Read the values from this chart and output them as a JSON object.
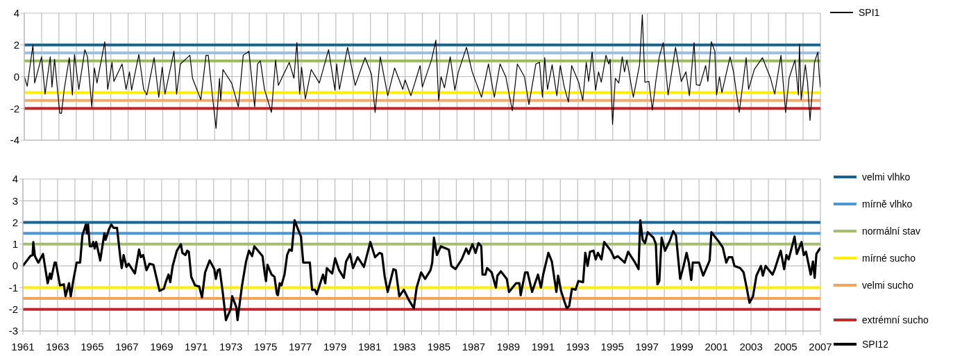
{
  "chart_data": [
    {
      "type": "line",
      "tick_labels": "y",
      "grid": true,
      "legend": "top right",
      "xlim": [
        1961,
        2007
      ],
      "xticks": [
        1961,
        {
          "value": 1962,
          "label": null
        },
        1963,
        {
          "value": 1964,
          "label": null
        },
        1965,
        {
          "value": 1966,
          "label": null
        },
        1967,
        {
          "value": 1968,
          "label": null
        },
        1969,
        {
          "value": 1970,
          "label": null
        },
        1971,
        {
          "value": 1972,
          "label": null
        },
        1973,
        {
          "value": 1974,
          "label": null
        },
        1975,
        {
          "value": 1976,
          "label": null
        },
        1977,
        {
          "value": 1978,
          "label": null
        },
        1979,
        {
          "value": 1980,
          "label": null
        },
        1981,
        {
          "value": 1982,
          "label": null
        },
        1983,
        {
          "value": 1984,
          "label": null
        },
        1985,
        {
          "value": 1986,
          "label": null
        },
        1987,
        {
          "value": 1988,
          "label": null
        },
        1989,
        {
          "value": 1990,
          "label": null
        },
        1991,
        {
          "value": 1992,
          "label": null
        },
        1993,
        {
          "value": 1994,
          "label": null
        },
        1995,
        {
          "value": 1996,
          "label": null
        },
        1997,
        {
          "value": 1998,
          "label": null
        },
        1999,
        {
          "value": 2000,
          "label": null
        },
        2001,
        {
          "value": 2002,
          "label": null
        },
        2003,
        {
          "value": 2004,
          "label": null
        },
        2005,
        {
          "value": 2006,
          "label": null
        },
        2007
      ],
      "ylim": [
        -4,
        4
      ],
      "yticks": [
        -4,
        -2,
        0,
        2,
        4
      ],
      "ref_lines": [
        {
          "axis": "y",
          "value": 2,
          "color": "#17648f"
        },
        {
          "axis": "y",
          "value": 1.5,
          "color": "#9dbddc"
        },
        {
          "axis": "y",
          "value": 1,
          "color": "#9bbb59"
        },
        {
          "axis": "y",
          "value": -1,
          "color": "#ffee00"
        },
        {
          "axis": "y",
          "value": -1.5,
          "color": "#f5a968"
        },
        {
          "axis": "y",
          "value": -2,
          "color": "#c0282d"
        }
      ],
      "series": [
        {
          "name": "SPI1",
          "color": "#000000",
          "x": [
            1961.0,
            1961.17,
            1961.5,
            1961.6,
            1962.0,
            1962.2,
            1962.5,
            1962.6,
            1962.75,
            1963.05,
            1963.15,
            1963.3,
            1963.6,
            1963.78,
            1963.9,
            1964.15,
            1964.5,
            1964.65,
            1964.9,
            1965.05,
            1965.2,
            1965.65,
            1965.82,
            1966.07,
            1966.18,
            1966.65,
            1966.88,
            1967.08,
            1967.2,
            1967.62,
            1967.9,
            1968.08,
            1968.5,
            1968.77,
            1968.97,
            1969.13,
            1969.65,
            1969.8,
            1970.02,
            1970.57,
            1970.72,
            1971.2,
            1971.5,
            1971.63,
            1971.88,
            1972.08,
            1972.28,
            1972.35,
            1972.48,
            1972.98,
            1973.37,
            1973.65,
            1973.98,
            1974.31,
            1974.48,
            1974.64,
            1974.88,
            1975.28,
            1975.52,
            1975.68,
            1976.31,
            1976.58,
            1976.75,
            1976.91,
            1977.02,
            1977.24,
            1977.58,
            1978.05,
            1978.58,
            1978.95,
            1979.05,
            1979.21,
            1979.68,
            1980.12,
            1980.69,
            1981.06,
            1981.27,
            1981.57,
            1982.0,
            1982.4,
            1982.87,
            1983.0,
            1983.34,
            1983.87,
            1984.0,
            1984.54,
            1984.78,
            1984.94,
            1985.08,
            1985.28,
            1985.61,
            1985.88,
            1986.08,
            1986.55,
            1986.88,
            1987.42,
            1987.82,
            1988.16,
            1988.49,
            1988.82,
            1989.2,
            1989.49,
            1989.9,
            1990.16,
            1990.56,
            1990.77,
            1990.94,
            1991.07,
            1991.23,
            1991.5,
            1991.77,
            1991.97,
            1992.2,
            1992.44,
            1992.63,
            1993.03,
            1993.27,
            1993.47,
            1993.61,
            1993.81,
            1994.01,
            1994.18,
            1994.34,
            1994.61,
            1994.77,
            1994.85,
            1994.99,
            1995.15,
            1995.35,
            1995.55,
            1995.68,
            1995.82,
            1996.19,
            1996.55,
            1996.71,
            1996.86,
            1997.09,
            1997.29,
            1997.49,
            1997.69,
            1997.92,
            1998.09,
            1998.2,
            1998.63,
            1998.96,
            1999.23,
            1999.43,
            1999.7,
            1999.83,
            2000.04,
            2000.37,
            2000.5,
            2000.7,
            2000.9,
            2001.0,
            2001.17,
            2001.31,
            2001.78,
            2001.98,
            2002.31,
            2002.71,
            2002.85,
            2003.18,
            2003.65,
            2004.12,
            2004.36,
            2004.72,
            2004.99,
            2005.19,
            2005.53,
            2005.73,
            2005.79,
            2005.89,
            2006.13,
            2006.26,
            2006.4,
            2006.66,
            2006.85,
            2006.93,
            2007.0
          ],
          "values": [
            0.0,
            -0.6,
            2.0,
            -0.4,
            1.25,
            -1.1,
            1.25,
            -0.65,
            1.1,
            -2.3,
            -2.3,
            -0.85,
            1.2,
            -1.15,
            1.4,
            -0.8,
            1.7,
            1.25,
            -1.9,
            0.55,
            -0.4,
            2.2,
            -0.8,
            0.9,
            -0.3,
            0.8,
            -0.8,
            0.3,
            -0.85,
            1.4,
            -0.8,
            -1.15,
            1.2,
            -1.3,
            0.6,
            -1.1,
            1.6,
            -1.1,
            0.8,
            1.35,
            -0.1,
            -1.45,
            1.35,
            1.35,
            -1.3,
            -3.25,
            -0.1,
            -1.5,
            0.45,
            -0.4,
            -1.9,
            1.35,
            1.6,
            -1.9,
            0.8,
            1.0,
            -0.8,
            -2.25,
            1.05,
            -0.55,
            0.9,
            -0.1,
            2.15,
            -1.1,
            0.6,
            -1.4,
            0.45,
            -0.4,
            1.7,
            -0.85,
            0.8,
            -0.8,
            1.85,
            -0.55,
            1.2,
            0.15,
            -2.25,
            1.25,
            -1.2,
            0.55,
            -0.8,
            -0.2,
            -1.2,
            0.7,
            -0.65,
            1.1,
            2.3,
            -1.5,
            0.0,
            -0.7,
            1.25,
            -0.85,
            0.3,
            1.85,
            0.3,
            -1.3,
            0.8,
            -1.3,
            0.8,
            0.0,
            -2.15,
            0.8,
            0.0,
            -1.75,
            0.8,
            0.9,
            -1.3,
            1.2,
            -0.8,
            0.75,
            -1.2,
            0.7,
            -0.65,
            -1.6,
            0.7,
            -0.35,
            -1.5,
            0.9,
            -0.3,
            1.55,
            -0.85,
            0.3,
            -0.35,
            1.35,
            0.8,
            1.1,
            -3.0,
            -0.1,
            -0.4,
            1.25,
            0.3,
            1.05,
            -1.3,
            0.75,
            3.9,
            -0.35,
            -0.3,
            -2.1,
            -0.3,
            1.25,
            2.15,
            0.15,
            -1.15,
            1.85,
            -0.3,
            0.3,
            -1.2,
            2.15,
            -0.5,
            -0.55,
            0.7,
            -0.3,
            2.2,
            1.6,
            -1.15,
            0.0,
            -1.0,
            1.25,
            0.3,
            -2.25,
            1.2,
            -0.8,
            0.45,
            1.2,
            -0.1,
            -1.1,
            1.35,
            -2.25,
            -0.1,
            1.05,
            -1.15,
            2.05,
            -1.45,
            0.75,
            -0.4,
            -2.75,
            0.9,
            1.55,
            0.15,
            -0.65
          ]
        }
      ]
    },
    {
      "type": "line",
      "grid": true,
      "legend": "right",
      "xlim": [
        1961,
        2007
      ],
      "xticks": [
        1961,
        {
          "value": 1962,
          "label": null
        },
        1963,
        {
          "value": 1964,
          "label": null
        },
        1965,
        {
          "value": 1966,
          "label": null
        },
        1967,
        {
          "value": 1968,
          "label": null
        },
        1969,
        {
          "value": 1970,
          "label": null
        },
        1971,
        {
          "value": 1972,
          "label": null
        },
        1973,
        {
          "value": 1974,
          "label": null
        },
        1975,
        {
          "value": 1976,
          "label": null
        },
        1977,
        {
          "value": 1978,
          "label": null
        },
        1979,
        {
          "value": 1980,
          "label": null
        },
        1981,
        {
          "value": 1982,
          "label": null
        },
        1983,
        {
          "value": 1984,
          "label": null
        },
        1985,
        {
          "value": 1986,
          "label": null
        },
        1987,
        {
          "value": 1988,
          "label": null
        },
        1989,
        {
          "value": 1990,
          "label": null
        },
        1991,
        {
          "value": 1992,
          "label": null
        },
        1993,
        {
          "value": 1994,
          "label": null
        },
        1995,
        {
          "value": 1996,
          "label": null
        },
        1997,
        {
          "value": 1998,
          "label": null
        },
        1999,
        {
          "value": 2000,
          "label": null
        },
        2001,
        {
          "value": 2002,
          "label": null
        },
        2003,
        {
          "value": 2004,
          "label": null
        },
        2005,
        {
          "value": 2006,
          "label": null
        },
        2007
      ],
      "ylim": [
        -3,
        4
      ],
      "yticks": [
        -3,
        -2,
        -1,
        0,
        1,
        2,
        3,
        4
      ],
      "ref_lines": [
        {
          "axis": "y",
          "value": 2,
          "label": "velmi vlhko",
          "color": "#17648f"
        },
        {
          "axis": "y",
          "value": 1.5,
          "label": "mírně vlhko",
          "color": "#4a97d3"
        },
        {
          "axis": "y",
          "value": 1,
          "label": "normální stav",
          "color": "#a5bd6f"
        },
        {
          "axis": "y",
          "value": -1,
          "label": "mírné sucho",
          "color": "#ffee00"
        },
        {
          "axis": "y",
          "value": -1.5,
          "label": "velmi sucho",
          "color": "#f2a45c"
        },
        {
          "axis": "y",
          "value": -2,
          "label": "extrémní sucho",
          "color": "#c0282d"
        }
      ],
      "series": [
        {
          "name": "SPI12",
          "color": "#000000",
          "x": [
            1961.0,
            1961.43,
            1961.56,
            1961.6,
            1961.69,
            1961.89,
            1962.16,
            1962.43,
            1962.56,
            1962.63,
            1962.83,
            1962.9,
            1963.14,
            1963.36,
            1963.46,
            1963.66,
            1963.76,
            1963.9,
            1964.1,
            1964.3,
            1964.43,
            1964.63,
            1964.7,
            1964.76,
            1964.86,
            1964.97,
            1965.06,
            1965.14,
            1965.23,
            1965.46,
            1965.7,
            1965.77,
            1965.97,
            1966.1,
            1966.23,
            1966.43,
            1966.63,
            1966.7,
            1966.81,
            1966.97,
            1967.1,
            1967.46,
            1967.57,
            1967.7,
            1967.8,
            1967.94,
            1968.13,
            1968.3,
            1968.53,
            1968.88,
            1969.13,
            1969.24,
            1969.4,
            1969.5,
            1969.64,
            1969.88,
            1970.11,
            1970.2,
            1970.37,
            1970.48,
            1970.57,
            1970.71,
            1970.93,
            1971.17,
            1971.33,
            1971.51,
            1971.77,
            1972.04,
            1972.13,
            1972.24,
            1972.35,
            1972.54,
            1972.71,
            1972.98,
            1973.07,
            1973.31,
            1973.38,
            1973.64,
            1973.87,
            1974.04,
            1974.22,
            1974.35,
            1974.82,
            1974.94,
            1975.02,
            1975.11,
            1975.34,
            1975.51,
            1975.65,
            1975.71,
            1975.81,
            1975.91,
            1976.09,
            1976.24,
            1976.37,
            1976.51,
            1976.67,
            1976.91,
            1977.04,
            1977.17,
            1977.55,
            1977.68,
            1977.84,
            1977.95,
            1978.31,
            1978.44,
            1978.53,
            1978.84,
            1979.01,
            1979.24,
            1979.51,
            1979.64,
            1979.87,
            1980.04,
            1980.31,
            1980.67,
            1981.04,
            1981.31,
            1981.57,
            1981.71,
            1981.87,
            1982.04,
            1982.37,
            1982.51,
            1982.71,
            1982.97,
            1983.28,
            1983.55,
            1983.71,
            1983.97,
            1984.2,
            1984.51,
            1984.61,
            1984.71,
            1984.88,
            1985.11,
            1985.57,
            1985.71,
            1985.95,
            1986.31,
            1986.57,
            1986.71,
            1986.93,
            1987.11,
            1987.28,
            1987.44,
            1987.51,
            1987.68,
            1987.77,
            1988.04,
            1988.28,
            1988.37,
            1988.57,
            1988.91,
            1989.04,
            1989.44,
            1989.64,
            1989.71,
            1989.97,
            1990.11,
            1990.37,
            1990.71,
            1990.88,
            1991.01,
            1991.31,
            1991.51,
            1991.77,
            1991.87,
            1992.04,
            1992.24,
            1992.37,
            1992.51,
            1992.67,
            1992.88,
            1993.04,
            1993.31,
            1993.44,
            1993.57,
            1993.71,
            1993.91,
            1994.04,
            1994.17,
            1994.37,
            1994.53,
            1994.91,
            1995.11,
            1995.31,
            1995.71,
            1995.91,
            1996.31,
            1996.51,
            1996.61,
            1996.75,
            1996.88,
            1997.04,
            1997.37,
            1997.51,
            1997.6,
            1997.71,
            1997.84,
            1998.04,
            1998.31,
            1998.51,
            1998.67,
            1998.91,
            1999.11,
            1999.28,
            1999.41,
            1999.55,
            1999.64,
            2000.0,
            2000.24,
            2000.61,
            2000.71,
            2001.11,
            2001.37,
            2001.57,
            2001.71,
            2001.91,
            2002.04,
            2002.37,
            2002.57,
            2002.77,
            2002.91,
            2003.11,
            2003.31,
            2003.57,
            2003.68,
            2003.84,
            2004.24,
            2004.37,
            2004.71,
            2004.91,
            2005.04,
            2005.17,
            2005.51,
            2005.64,
            2005.91,
            2006.04,
            2006.17,
            2006.44,
            2006.57,
            2006.67,
            2006.77,
            2006.97
          ],
          "values": [
            0.0,
            0.45,
            0.5,
            1.1,
            0.45,
            0.15,
            0.55,
            -0.8,
            -0.35,
            -0.6,
            0.15,
            0.15,
            -0.9,
            -0.85,
            -1.4,
            -0.8,
            -1.4,
            -0.7,
            0.15,
            0.15,
            1.4,
            1.9,
            1.5,
            1.9,
            0.9,
            0.9,
            1.1,
            0.8,
            1.1,
            0.25,
            1.5,
            1.2,
            1.7,
            1.9,
            1.75,
            1.75,
            0.3,
            -0.1,
            0.5,
            -0.05,
            0.1,
            -0.35,
            0.15,
            0.75,
            0.4,
            0.5,
            -0.2,
            0.1,
            0.05,
            -1.15,
            -1.05,
            -0.75,
            -0.4,
            -0.75,
            0.0,
            0.7,
            1.0,
            0.6,
            0.5,
            0.7,
            0.65,
            -0.5,
            -0.9,
            -0.95,
            -1.45,
            -0.3,
            0.25,
            -0.15,
            -0.6,
            -0.2,
            -0.15,
            -1.3,
            -2.5,
            -2.0,
            -1.4,
            -1.9,
            -2.5,
            -0.9,
            0.2,
            0.7,
            0.45,
            0.9,
            0.45,
            -0.3,
            -0.7,
            0.05,
            -0.4,
            -0.5,
            -1.3,
            -1.35,
            -0.8,
            -0.9,
            -0.4,
            0.5,
            0.75,
            0.7,
            2.1,
            1.6,
            1.35,
            0.15,
            0.15,
            -1.1,
            -1.1,
            -1.3,
            -0.4,
            -0.8,
            -0.1,
            -0.35,
            0.35,
            -0.2,
            -0.55,
            0.2,
            0.55,
            -0.1,
            0.4,
            -0.05,
            1.1,
            0.4,
            0.6,
            0.55,
            -0.5,
            -1.2,
            -0.15,
            -0.2,
            -1.4,
            -1.1,
            -1.6,
            -1.95,
            -1.0,
            -0.3,
            -0.6,
            -0.2,
            0.15,
            1.3,
            0.5,
            0.9,
            0.75,
            0.0,
            -0.15,
            0.3,
            0.8,
            0.55,
            1.0,
            0.6,
            1.05,
            0.9,
            -0.4,
            -0.4,
            -0.1,
            -0.3,
            -1.0,
            -0.45,
            -0.25,
            -0.6,
            -1.2,
            -0.8,
            -0.8,
            -1.35,
            -0.3,
            -0.3,
            -1.2,
            -0.4,
            -1.0,
            -0.4,
            0.6,
            0.2,
            -1.2,
            -0.45,
            -1.15,
            -1.65,
            -1.95,
            -1.85,
            -1.05,
            -1.1,
            -0.7,
            -0.75,
            0.6,
            0.0,
            0.65,
            0.7,
            0.3,
            0.6,
            0.3,
            1.1,
            0.7,
            0.35,
            0.45,
            0.15,
            0.65,
            0.15,
            -0.15,
            2.1,
            1.2,
            1.05,
            1.55,
            1.3,
            1.0,
            -0.85,
            -0.7,
            1.3,
            0.7,
            1.15,
            1.6,
            1.4,
            -0.6,
            0.0,
            0.6,
            0.15,
            -0.65,
            0.15,
            0.15,
            -0.45,
            0.25,
            1.55,
            1.15,
            0.85,
            0.15,
            0.4,
            0.4,
            0.0,
            -0.1,
            -0.3,
            -1.1,
            -1.7,
            -1.4,
            -0.45,
            0.0,
            -0.45,
            0.0,
            -0.4,
            -0.15,
            0.7,
            -0.15,
            0.5,
            0.3,
            1.35,
            0.55,
            1.1,
            0.5,
            0.65,
            -0.4,
            0.2,
            -0.55,
            0.55,
            0.8
          ]
        }
      ]
    }
  ]
}
